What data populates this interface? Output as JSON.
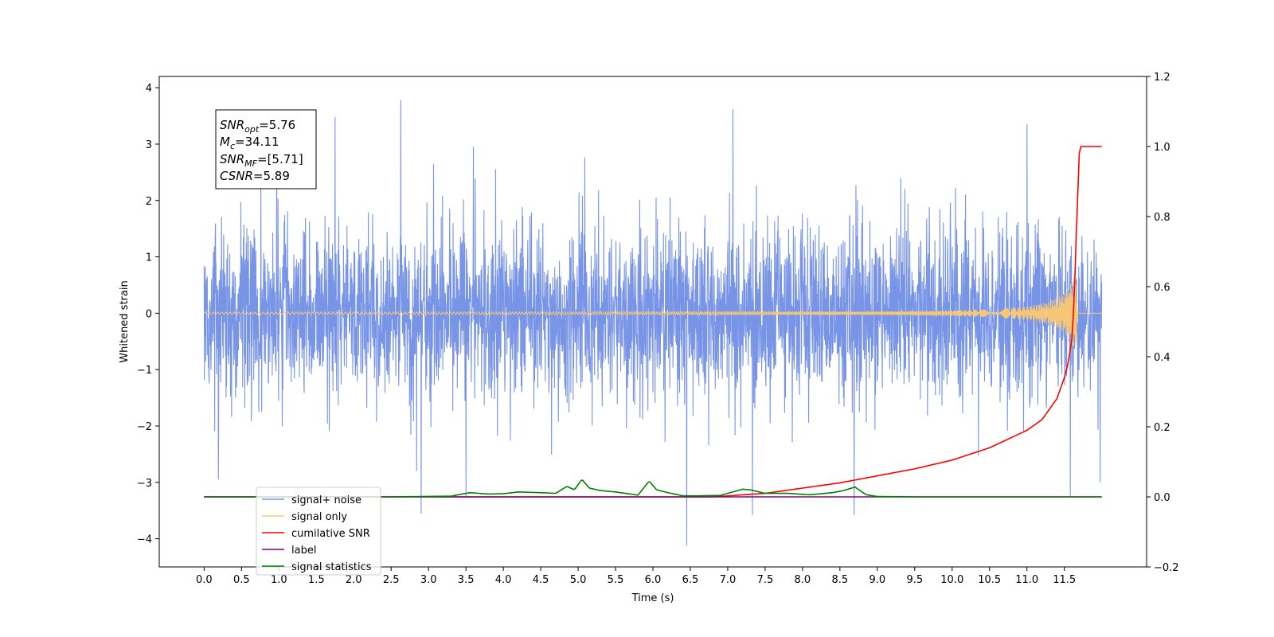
{
  "chart_data": {
    "type": "line",
    "xlabel": "Time (s)",
    "ylabel": "Whitened strain",
    "xlim": [
      -0.6,
      12.6
    ],
    "ylim": [
      -4.5,
      4.2
    ],
    "y2lim": [
      -0.2,
      1.2
    ],
    "x_ticks": [
      0.0,
      0.5,
      1.0,
      1.5,
      2.0,
      2.5,
      3.0,
      3.5,
      4.0,
      4.5,
      5.0,
      5.5,
      6.0,
      6.5,
      7.0,
      7.5,
      8.0,
      8.5,
      9.0,
      9.5,
      10.0,
      10.5,
      11.0,
      11.5
    ],
    "x_tick_labels": [
      "0.0",
      "0.5",
      "1.0",
      "1.5",
      "2.0",
      "2.5",
      "3.0",
      "3.5",
      "4.0",
      "4.5",
      "5.0",
      "5.5",
      "6.0",
      "6.5",
      "7.0",
      "7.5",
      "8.0",
      "8.5",
      "9.0",
      "9.5",
      "10.0",
      "10.5",
      "11.0",
      "11.5"
    ],
    "y_ticks": [
      4,
      3,
      2,
      1,
      0,
      -1,
      -2,
      -3,
      -4
    ],
    "y_tick_labels": [
      "4",
      "3",
      "2",
      "1",
      "0",
      "−1",
      "−2",
      "−3",
      "−4"
    ],
    "y2_ticks": [
      1.2,
      1.0,
      0.8,
      0.6,
      0.4,
      0.2,
      0.0,
      -0.2
    ],
    "y2_tick_labels": [
      "1.2",
      "1.0",
      "0.8",
      "0.6",
      "0.4",
      "0.2",
      "0.0",
      "−0.2"
    ],
    "annotation": [
      {
        "sym": "SNR",
        "sub": "opt",
        "val": "=5.76"
      },
      {
        "sym": "M",
        "sub": "c",
        "val": "=34.11"
      },
      {
        "sym": "SNR",
        "sub": "MF",
        "val": "=[5.71]"
      },
      {
        "sym": "CSNR",
        "sub": "",
        "val": "=5.89"
      }
    ],
    "legend": {
      "placement": "lower-left",
      "items": [
        {
          "label": "signal+ noise",
          "color": "#7894e6"
        },
        {
          "label": "signal only",
          "color": "#f5c777"
        },
        {
          "label": "cumilative SNR",
          "color": "#ff0000"
        },
        {
          "label": "label",
          "color": "#800080"
        },
        {
          "label": "signal statistics",
          "color": "#008000"
        }
      ]
    },
    "series": [
      {
        "name": "signal+ noise",
        "axis": "left",
        "color": "#7894e6",
        "x_range": [
          0.0,
          12.0
        ],
        "envelope_typical": [
          -1.5,
          1.5
        ],
        "peaks": [
          [
            0.97,
            3.35
          ],
          [
            1.75,
            3.48
          ],
          [
            2.63,
            3.78
          ],
          [
            7.07,
            3.62
          ],
          [
            11.0,
            3.35
          ],
          [
            3.6,
            2.95
          ],
          [
            0.19,
            -2.95
          ],
          [
            2.9,
            -3.55
          ],
          [
            3.5,
            -3.25
          ],
          [
            6.45,
            -4.12
          ],
          [
            7.33,
            -3.58
          ],
          [
            8.69,
            -3.58
          ],
          [
            11.58,
            -3.25
          ],
          [
            11.98,
            -3.0
          ]
        ]
      },
      {
        "name": "signal only",
        "axis": "left",
        "color": "#f5c777",
        "x": [
          0.0,
          9.0,
          10.0,
          10.5,
          11.0,
          11.3,
          11.5,
          11.6,
          11.65,
          11.68,
          12.0
        ],
        "amplitude": [
          0.02,
          0.03,
          0.05,
          0.07,
          0.12,
          0.2,
          0.35,
          0.55,
          0.8,
          0.0,
          0.0
        ]
      },
      {
        "name": "cumilative SNR",
        "axis": "right",
        "color": "#ff0000",
        "x": [
          6.8,
          7.5,
          8.0,
          8.5,
          9.0,
          9.5,
          10.0,
          10.5,
          11.0,
          11.2,
          11.4,
          11.5,
          11.55,
          11.6,
          11.63,
          11.66,
          11.7,
          11.72,
          12.0
        ],
        "values": [
          0.0,
          0.01,
          0.025,
          0.04,
          0.06,
          0.08,
          0.105,
          0.14,
          0.19,
          0.22,
          0.28,
          0.34,
          0.38,
          0.45,
          0.55,
          0.75,
          0.98,
          1.0,
          1.0
        ]
      },
      {
        "name": "label",
        "axis": "right",
        "color": "#800080",
        "x": [
          0.0,
          12.0
        ],
        "values": [
          0.0,
          0.0
        ]
      },
      {
        "name": "signal statistics",
        "axis": "right",
        "color": "#008000",
        "x": [
          0.0,
          2.5,
          3.3,
          3.55,
          3.8,
          4.0,
          4.2,
          4.5,
          4.7,
          4.85,
          4.95,
          5.05,
          5.15,
          5.3,
          5.5,
          5.8,
          5.95,
          6.05,
          6.2,
          6.4,
          6.6,
          6.9,
          7.2,
          7.3,
          7.5,
          7.8,
          8.1,
          8.4,
          8.55,
          8.7,
          8.85,
          9.0,
          9.5,
          12.0
        ],
        "values": [
          0.0,
          0.0,
          0.002,
          0.012,
          0.008,
          0.009,
          0.014,
          0.012,
          0.01,
          0.03,
          0.02,
          0.05,
          0.025,
          0.018,
          0.014,
          0.005,
          0.045,
          0.02,
          0.012,
          0.003,
          0.003,
          0.004,
          0.022,
          0.02,
          0.01,
          0.01,
          0.006,
          0.012,
          0.018,
          0.028,
          0.006,
          0.001,
          0.0,
          0.0
        ]
      }
    ]
  }
}
